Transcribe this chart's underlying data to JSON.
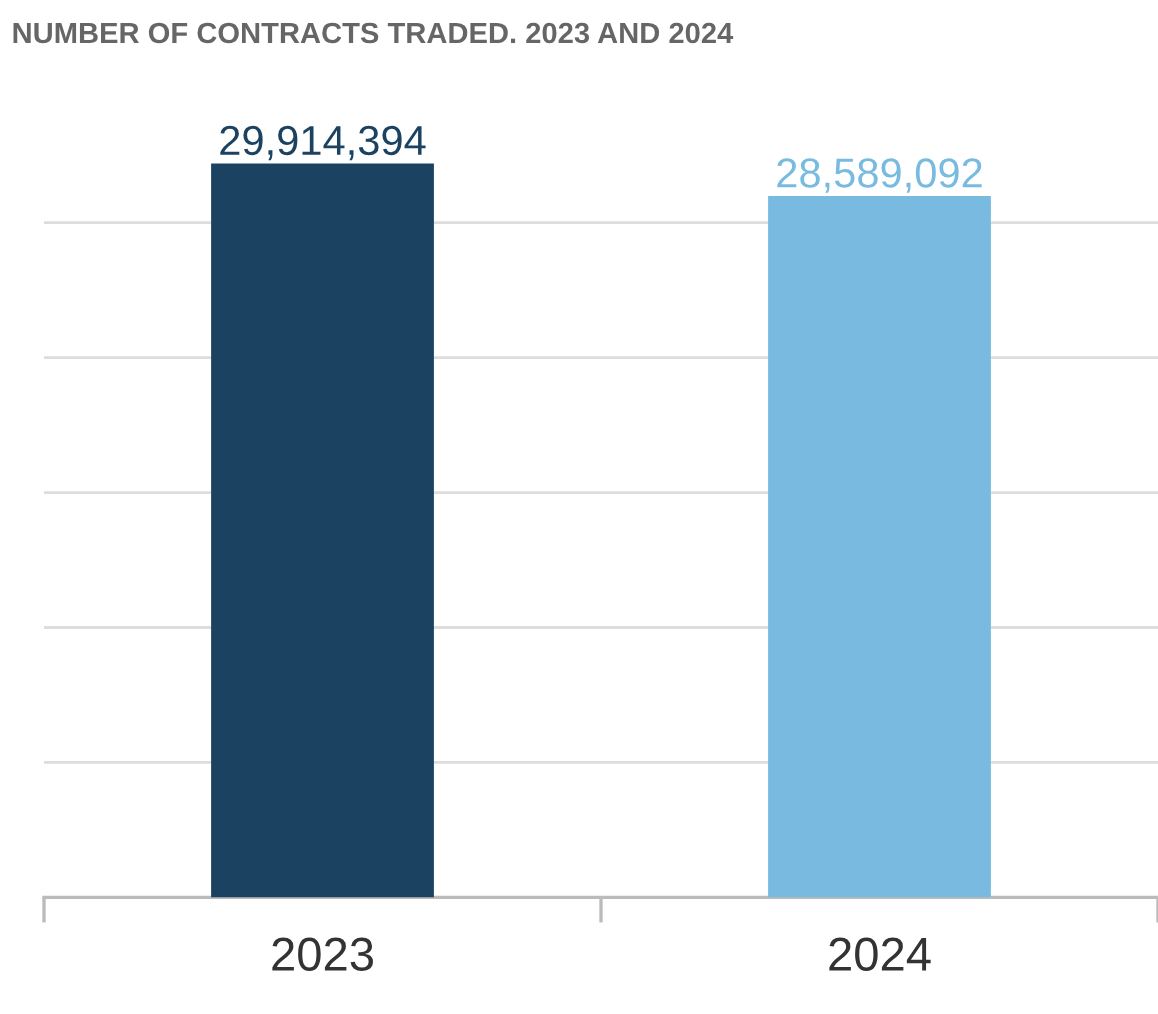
{
  "chart_data": {
    "type": "bar",
    "title": "NUMBER OF CONTRACTS TRADED. 2023 AND 2024",
    "categories": [
      "2023",
      "2024"
    ],
    "values": [
      29914394,
      28589092
    ],
    "colors": [
      "#1c4262",
      "#79bbe0"
    ],
    "value_labels": [
      "29,914,394",
      "28,589,092"
    ],
    "yticks": [
      {
        "value": 5500000,
        "label": null
      },
      {
        "value": 11000000,
        "label": null
      },
      {
        "value": 16500000,
        "label": null
      },
      {
        "value": 22000000,
        "label": null
      },
      {
        "value": 27500000,
        "label": null
      }
    ],
    "grid": "y",
    "tick_labels": "x"
  }
}
